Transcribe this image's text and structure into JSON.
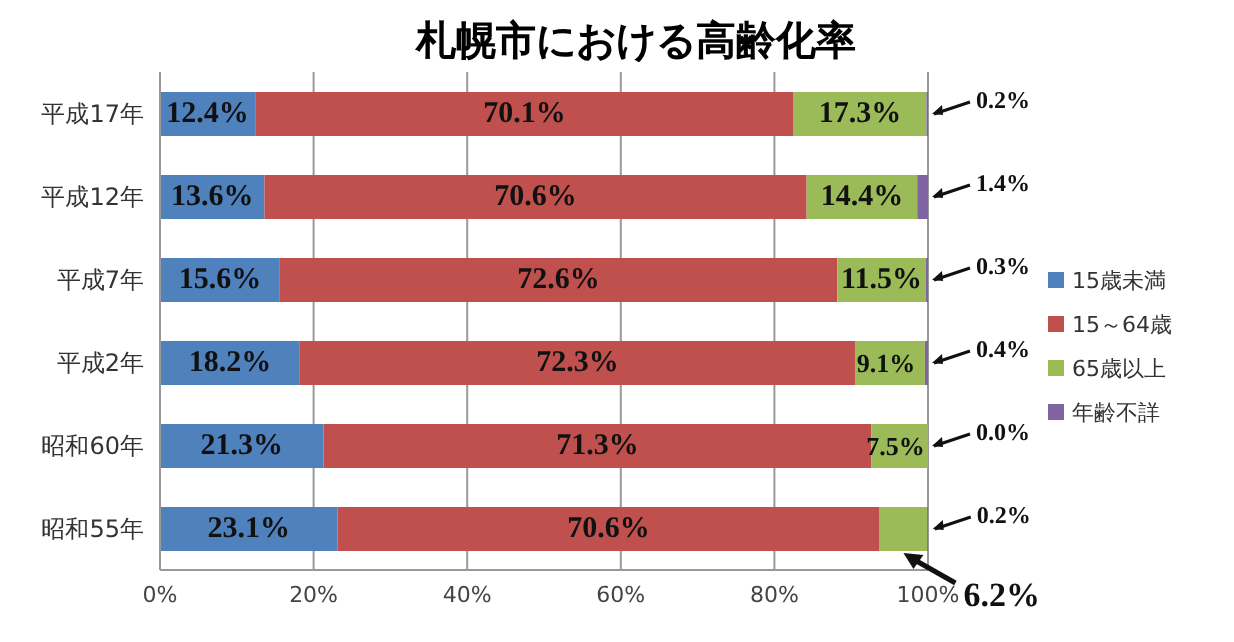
{
  "chart_data": {
    "type": "bar",
    "title": "札幌市における高齢化率",
    "orientation": "horizontal",
    "stacked": true,
    "categories": [
      "平成17年",
      "平成12年",
      "平成7年",
      "平成2年",
      "昭和60年",
      "昭和55年"
    ],
    "series": [
      {
        "name": "15歳未満",
        "color": "#4f81bd",
        "values": [
          12.4,
          13.6,
          15.6,
          18.2,
          21.3,
          23.1
        ],
        "value_labels": [
          "12.4%",
          "13.6%",
          "15.6%",
          "18.2%",
          "21.3%",
          "23.1%"
        ]
      },
      {
        "name": "15～64歳",
        "color": "#c0504d",
        "values": [
          70.1,
          70.6,
          72.6,
          72.3,
          71.3,
          70.6
        ],
        "value_labels": [
          "70.1%",
          "70.6%",
          "72.6%",
          "72.3%",
          "71.3%",
          "70.6%"
        ]
      },
      {
        "name": "65歳以上",
        "color": "#9bbb59",
        "values": [
          17.3,
          14.4,
          11.5,
          9.1,
          7.5,
          6.2
        ],
        "value_labels": [
          "17.3%",
          "14.4%",
          "11.5%",
          "9.1%",
          "7.5%",
          "6.2%"
        ]
      },
      {
        "name": "年齢不詳",
        "color": "#8064a2",
        "values": [
          0.2,
          1.4,
          0.3,
          0.4,
          0.0,
          0.2
        ],
        "value_labels": [
          "0.2%",
          "1.4%",
          "0.3%",
          "0.4%",
          "0.0%",
          "0.2%"
        ]
      }
    ],
    "xlim": [
      0,
      100
    ],
    "xticks": [
      {
        "value": 0,
        "label": "0%"
      },
      {
        "value": 20,
        "label": "20%"
      },
      {
        "value": 40,
        "label": "40%"
      },
      {
        "value": 60,
        "label": "60%"
      },
      {
        "value": 80,
        "label": "80%"
      },
      {
        "value": 100,
        "label": "100%"
      }
    ],
    "grid": "x",
    "legend": "right"
  }
}
